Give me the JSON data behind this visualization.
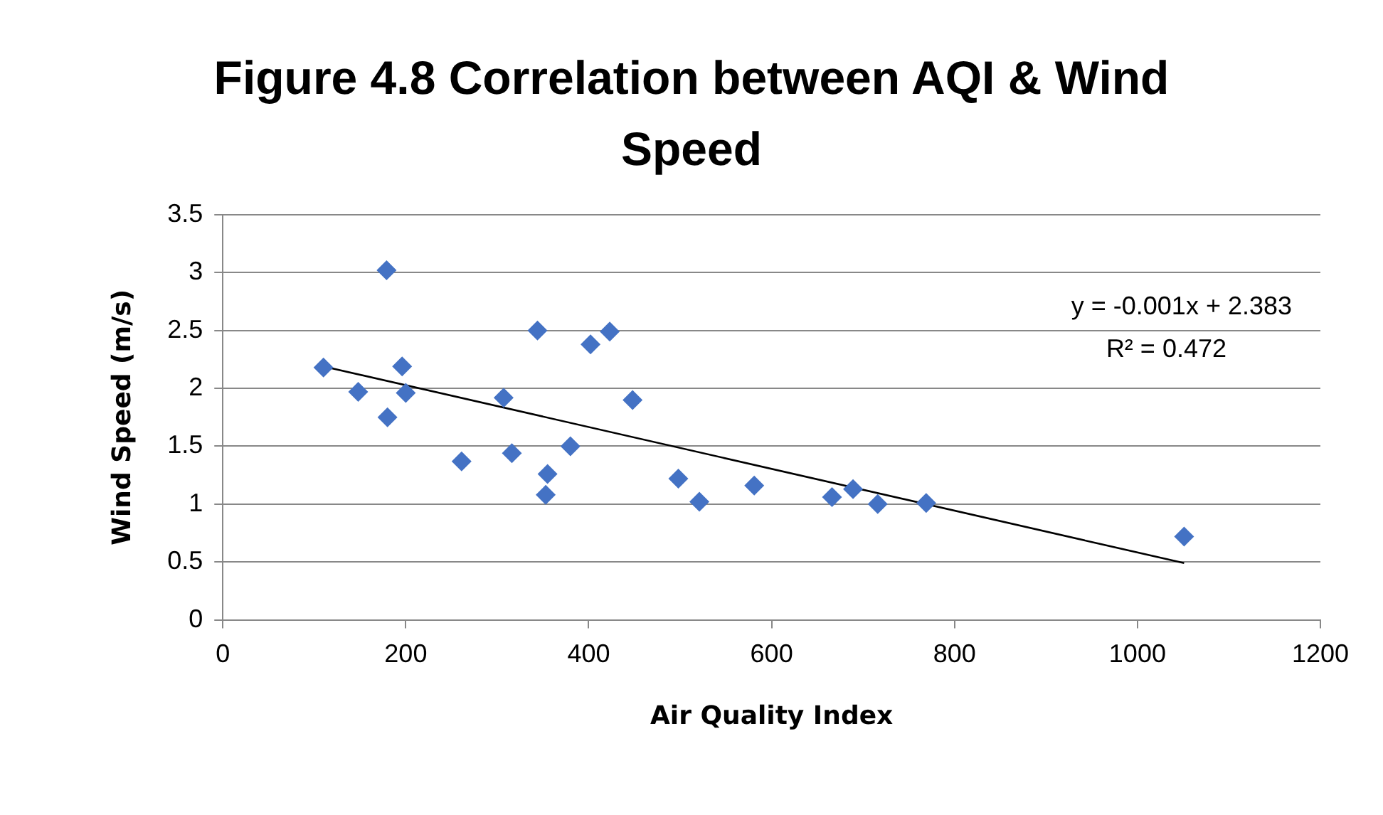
{
  "chart_data": {
    "type": "scatter",
    "title": "Figure 4.8 Correlation between AQI & Wind Speed",
    "xlabel": "Air Quality Index",
    "ylabel": "Wind Speed (m/s)",
    "xlim": [
      0,
      1200
    ],
    "xticks": [
      0,
      200,
      400,
      600,
      800,
      1000,
      1200
    ],
    "ylim": [
      0,
      3.5
    ],
    "yticks": [
      0,
      0.5,
      1,
      1.5,
      2,
      2.5,
      3,
      3.5
    ],
    "grid": "y",
    "marker": "diamond",
    "annotations": [
      "y = -0.001x + 2.383",
      "R² = 0.472"
    ],
    "series": [
      {
        "color": "#4472c4",
        "x": [
          110,
          148,
          179,
          180,
          196,
          200,
          261,
          307,
          316,
          344,
          355,
          353,
          380,
          402,
          423,
          448,
          498,
          521,
          581,
          666,
          689,
          716,
          769,
          1051
        ],
        "values": [
          2.18,
          1.97,
          3.02,
          1.75,
          2.19,
          1.96,
          1.37,
          1.92,
          1.44,
          2.5,
          1.26,
          1.08,
          1.5,
          2.38,
          2.49,
          1.9,
          1.22,
          1.02,
          1.16,
          1.06,
          1.13,
          1.0,
          1.01,
          0.72
        ]
      },
      {
        "type": "line",
        "color": "#000000",
        "marker": "none",
        "x": [
          110,
          1051
        ],
        "values": [
          2.19,
          0.49
        ]
      }
    ]
  }
}
